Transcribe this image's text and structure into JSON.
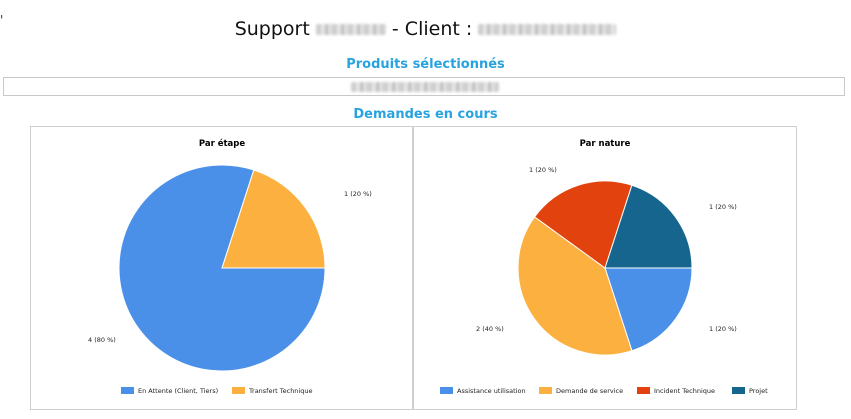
{
  "header": {
    "title_prefix": "Support",
    "title_middle": "- Client :"
  },
  "sections": {
    "products_title": "Produits sélectionnés",
    "requests_title": "Demandes en cours"
  },
  "colors": {
    "accent": "#29a3e0",
    "blue": "#4a90e8",
    "orange": "#fbb040",
    "red": "#e2430e",
    "dark_blue": "#15658f"
  },
  "chart_data": [
    {
      "type": "pie",
      "title": "Par étape",
      "categories": [
        "En Attente (Client, Tiers)",
        "Transfert Technique"
      ],
      "values": [
        4,
        1
      ],
      "labels": [
        "4 (80 %)",
        "1 (20 %)"
      ],
      "colors": [
        "#4a90e8",
        "#fbb040"
      ],
      "legend": "bottom"
    },
    {
      "type": "pie",
      "title": "Par nature",
      "categories": [
        "Assistance utilisation",
        "Demande de service",
        "Incident Technique",
        "Projet"
      ],
      "values": [
        1,
        2,
        1,
        1
      ],
      "labels": [
        "1 (20 %)",
        "2 (40 %)",
        "1 (20 %)",
        "1 (20 %)"
      ],
      "colors": [
        "#4a90e8",
        "#fbb040",
        "#e2430e",
        "#15658f"
      ],
      "legend": "bottom"
    }
  ]
}
